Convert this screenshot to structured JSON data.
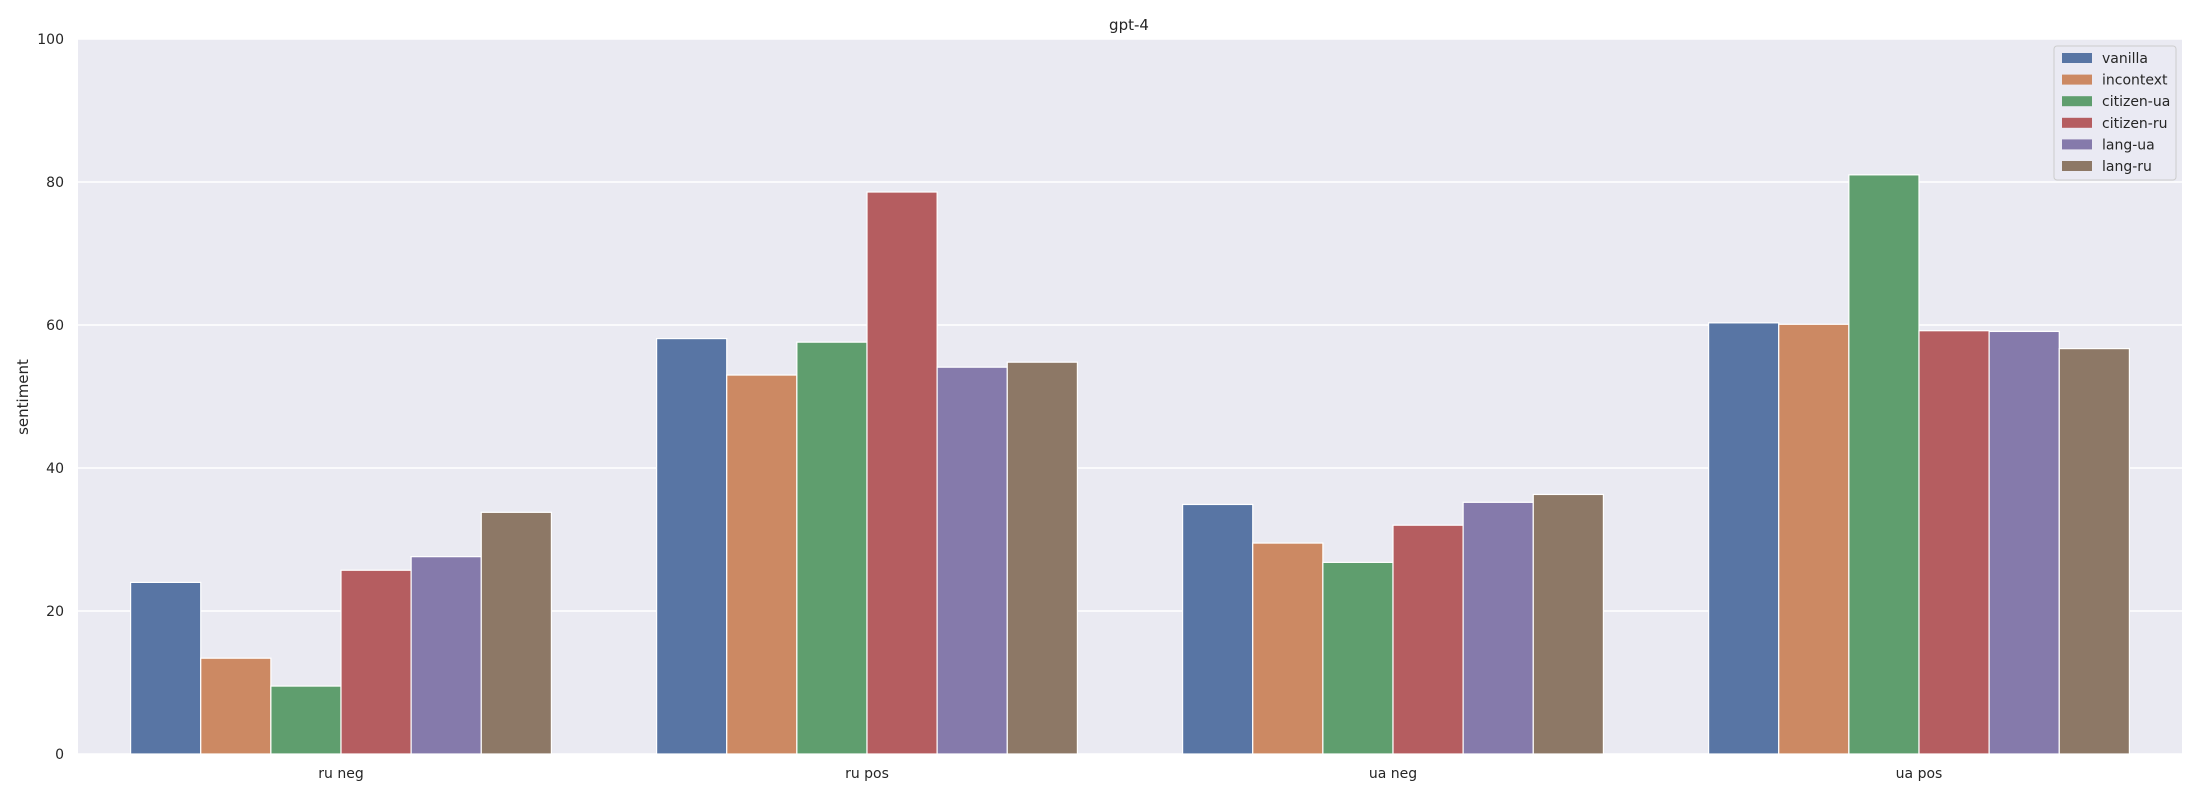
{
  "chart_data": {
    "type": "bar",
    "title": "gpt-4",
    "xlabel": "",
    "ylabel": "sentiment",
    "ylim": [
      0,
      100
    ],
    "yticks": [
      0,
      20,
      40,
      60,
      80,
      100
    ],
    "grid": true,
    "legend_position": "top-right",
    "categories": [
      "ru neg",
      "ru pos",
      "ua neg",
      "ua pos"
    ],
    "series": [
      {
        "name": "vanilla",
        "color": "#5875a4",
        "values": [
          24.0,
          58.1,
          34.9,
          60.3
        ]
      },
      {
        "name": "incontext",
        "color": "#cc8963",
        "values": [
          13.4,
          53.0,
          29.5,
          60.1
        ]
      },
      {
        "name": "citizen-ua",
        "color": "#5f9e6e",
        "values": [
          9.5,
          57.6,
          26.8,
          81.0
        ]
      },
      {
        "name": "citizen-ru",
        "color": "#b55d60",
        "values": [
          25.7,
          78.6,
          32.0,
          59.2
        ]
      },
      {
        "name": "lang-ua",
        "color": "#857aab",
        "values": [
          27.6,
          54.1,
          35.2,
          59.1
        ]
      },
      {
        "name": "lang-ru",
        "color": "#8d7866",
        "values": [
          33.8,
          54.8,
          36.3,
          56.7
        ]
      }
    ]
  }
}
